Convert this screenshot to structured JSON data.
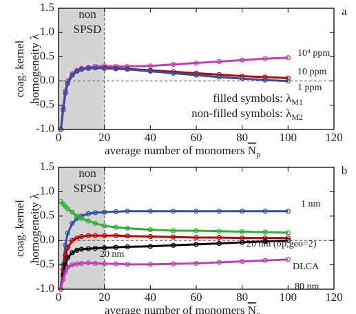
{
  "chart_data": [
    {
      "type": "line",
      "panel_label": "a",
      "ylabel": [
        "coag. kernel",
        "homogeneity λ"
      ],
      "xlabel": "average number of monomers ",
      "xlabel_symbol": "N",
      "xlabel_sub": "p",
      "shade_label": [
        "non",
        "SPSD"
      ],
      "shade_range": [
        0,
        20
      ],
      "xlim": [
        0,
        120
      ],
      "xticks": [
        0,
        20,
        40,
        60,
        80,
        100,
        120
      ],
      "ylim": [
        -1,
        1.5
      ],
      "yticks": [
        {
          "value": -1,
          "label": "-1.0"
        },
        -0.5,
        {
          "value": 0,
          "label": "0.0"
        },
        0.5,
        {
          "value": 1,
          "label": "1.0"
        },
        1.5
      ],
      "x": [
        1,
        2,
        3,
        4,
        6,
        8,
        10,
        13,
        16,
        20,
        25,
        30,
        40,
        50,
        60,
        70,
        80,
        90,
        100
      ],
      "series": [
        {
          "name": "10⁴ ppm",
          "color": "#c040b0",
          "values": [
            -1,
            -0.55,
            -0.2,
            0,
            0.15,
            0.22,
            0.26,
            0.28,
            0.3,
            0.31,
            0.3,
            0.3,
            0.31,
            0.34,
            0.37,
            0.4,
            0.43,
            0.46,
            0.48
          ]
        },
        {
          "name": "10 ppm",
          "color": "#c00000",
          "values": [
            -1,
            -0.6,
            -0.25,
            -0.05,
            0.12,
            0.2,
            0.24,
            0.26,
            0.27,
            0.27,
            0.26,
            0.25,
            0.22,
            0.19,
            0.16,
            0.13,
            0.1,
            0.08,
            0.06
          ]
        },
        {
          "name": "1 ppm",
          "color": "#3050a0",
          "values": [
            -1,
            -0.6,
            -0.25,
            -0.05,
            0.12,
            0.2,
            0.24,
            0.26,
            0.27,
            0.26,
            0.25,
            0.24,
            0.2,
            0.16,
            0.12,
            0.08,
            0.05,
            0.02,
            0
          ]
        }
      ],
      "annotations": [
        {
          "text": "filled symbols: λ",
          "sub": "M1"
        },
        {
          "text": "non-filled symbols: λ",
          "sub": "M2"
        }
      ]
    },
    {
      "type": "line",
      "panel_label": "b",
      "ylabel": [
        "coag. kernel",
        "homogeneity λ"
      ],
      "xlabel": "average number of monomers ",
      "xlabel_symbol": "N",
      "xlabel_sub": "p",
      "shade_label": [
        "non",
        "SPSD"
      ],
      "shade_range": [
        0,
        20
      ],
      "xlim": [
        0,
        120
      ],
      "xticks": [
        0,
        20,
        40,
        60,
        80,
        100,
        120
      ],
      "ylim": [
        -1,
        1.5
      ],
      "yticks": [
        {
          "value": -1,
          "label": "-1.0"
        },
        -0.5,
        {
          "value": 0,
          "label": "0.0"
        },
        0.5,
        {
          "value": 1,
          "label": "1.0"
        },
        1.5
      ],
      "x": [
        1,
        2,
        3,
        4,
        6,
        8,
        10,
        13,
        16,
        20,
        25,
        30,
        40,
        50,
        60,
        70,
        80,
        90,
        100
      ],
      "series": [
        {
          "name": "1 nm",
          "color": "#3050a0",
          "values": [
            -1,
            -0.5,
            -0.1,
            0.15,
            0.35,
            0.45,
            0.5,
            0.55,
            0.57,
            0.58,
            0.59,
            0.6,
            0.6,
            0.6,
            0.6,
            0.6,
            0.6,
            0.6,
            0.6
          ]
        },
        {
          "name": "20 nm (σp,geo=2)",
          "color": "#30b030",
          "values": [
            0.8,
            0.75,
            0.7,
            0.65,
            0.58,
            0.5,
            0.45,
            0.4,
            0.35,
            0.3,
            0.27,
            0.25,
            0.22,
            0.2,
            0.2,
            0.19,
            0.18,
            0.17,
            0.16
          ]
        },
        {
          "name": "20 nm",
          "color": "#c00000",
          "values": [
            -1,
            -0.6,
            -0.3,
            -0.15,
            0,
            0.05,
            0.08,
            0.1,
            0.1,
            0.1,
            0.1,
            0.09,
            0.08,
            0.07,
            0.06,
            0.06,
            0.05,
            0.05,
            0.05
          ]
        },
        {
          "name": "DLCA",
          "color": "#000000",
          "values": [
            -1,
            -0.7,
            -0.5,
            -0.35,
            -0.25,
            -0.2,
            -0.18,
            -0.17,
            -0.16,
            -0.15,
            -0.14,
            -0.13,
            -0.12,
            -0.1,
            -0.08,
            -0.06,
            -0.04,
            -0.02,
            0
          ]
        },
        {
          "name": "80 nm",
          "color": "#c040b0",
          "values": [
            -1,
            -0.8,
            -0.65,
            -0.55,
            -0.5,
            -0.48,
            -0.47,
            -0.46,
            -0.47,
            -0.48,
            -0.48,
            -0.49,
            -0.49,
            -0.48,
            -0.47,
            -0.45,
            -0.43,
            -0.41,
            -0.39
          ]
        }
      ]
    }
  ]
}
